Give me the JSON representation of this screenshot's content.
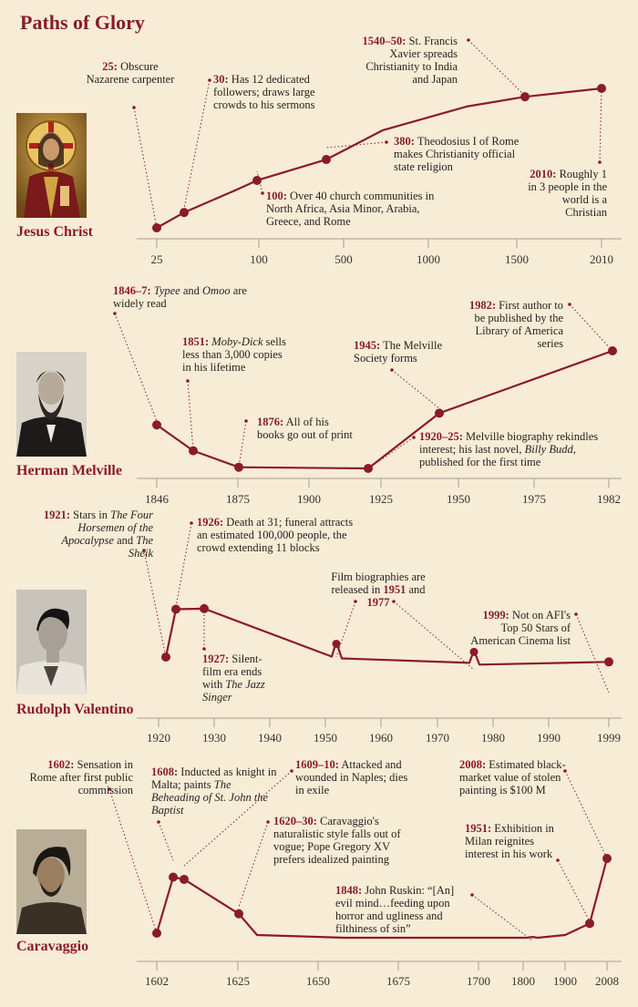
{
  "title": "Paths of Glory",
  "colors": {
    "accent": "#8b1a2b",
    "axis": "#a89d8e",
    "background": "#f7ecd6"
  },
  "chart_data": [
    {
      "type": "line",
      "name": "Jesus Christ",
      "x_ticks": [
        "25",
        "100",
        "500",
        "1000",
        "1500",
        "2010"
      ],
      "points": [
        {
          "x": "25",
          "level": 0.0
        },
        {
          "x": "30",
          "level": 0.11
        },
        {
          "x": "~60",
          "level": 0.28
        },
        {
          "x": "100",
          "level": 0.34
        },
        {
          "x": "380",
          "level": 0.49
        },
        {
          "x": "~750",
          "level": 0.7
        },
        {
          "x": "~1200",
          "level": 0.87
        },
        {
          "x": "1540–50",
          "level": 0.94
        },
        {
          "x": "2010",
          "level": 1.0
        }
      ],
      "annotations": [
        {
          "head": "25:",
          "text": "Obscure Nazarene carpenter"
        },
        {
          "head": "30:",
          "text": "Has 12 dedicated followers; draws large crowds to his sermons"
        },
        {
          "head": "100:",
          "text": "Over 40 church communities in North Africa, Asia Minor, Arabia, Greece, and Rome"
        },
        {
          "head": "380:",
          "text": "Theodosius I of Rome makes Christianity official state religion"
        },
        {
          "head": "1540–50:",
          "text": "St. Francis Xavier spreads Christianity to India and Japan"
        },
        {
          "head": "2010:",
          "text": "Roughly 1 in 3 people in the world is a Christian"
        }
      ]
    },
    {
      "type": "line",
      "name": "Herman Melville",
      "x_ticks": [
        "1846",
        "1875",
        "1900",
        "1925",
        "1950",
        "1975",
        "1982"
      ],
      "points": [
        {
          "x": "1846–7",
          "level": 0.37
        },
        {
          "x": "1851",
          "level": 0.15
        },
        {
          "x": "1876",
          "level": 0.01
        },
        {
          "x": "1920–25",
          "level": 0.0
        },
        {
          "x": "1945",
          "level": 0.47
        },
        {
          "x": "1982",
          "level": 1.0
        }
      ],
      "annotations": [
        {
          "head": "1846–7:",
          "text_parts": [
            "",
            "Typee",
            " and ",
            "Omoo",
            " are widely read"
          ]
        },
        {
          "head": "1851:",
          "text_parts": [
            "",
            "Moby-Dick",
            " sells less than 3,000 copies in his lifetime"
          ]
        },
        {
          "head": "1876:",
          "text": "All of his books go out of print"
        },
        {
          "head": "1945:",
          "text": "The Melville Society forms"
        },
        {
          "head": "1920–25:",
          "text_parts": [
            "Melville biography rekindles interest; his last novel, ",
            "Billy Budd",
            ", published for the first time"
          ]
        },
        {
          "head": "1982:",
          "text": "First author to be published by the Library of America series"
        }
      ]
    },
    {
      "type": "line",
      "name": "Rudolph Valentino",
      "x_ticks": [
        "1920",
        "1930",
        "1940",
        "1950",
        "1960",
        "1970",
        "1980",
        "1990",
        "1999"
      ],
      "points": [
        {
          "x": "1921",
          "level": 0.0
        },
        {
          "x": "1922",
          "level": 0.89
        },
        {
          "x": "1926",
          "level": 0.9
        },
        {
          "x": "1951",
          "level": 0.28
        },
        {
          "x": "1977",
          "level": 0.13
        },
        {
          "x": "1999",
          "level": -0.09
        }
      ],
      "annotations": [
        {
          "head": "1921:",
          "text_parts": [
            "Stars in ",
            "The Four Horsemen of the Apocalypse",
            " and ",
            "The Sheik",
            ""
          ]
        },
        {
          "head": "1926:",
          "text": "Death at 31; funeral attracts an estimated 100,000 people, the crowd extending 11 blocks"
        },
        {
          "head": "1927:",
          "text_parts": [
            "Silent-film era ends with ",
            "The Jazz Singer",
            ""
          ]
        },
        {
          "head": "",
          "text_parts": [
            "Film biographies are released in ",
            "1951",
            " and ",
            "1977",
            ""
          ]
        },
        {
          "head": "1999:",
          "text": "Not on AFI's Top 50 Stars of American Cinema list"
        }
      ]
    },
    {
      "type": "line",
      "name": "Caravaggio",
      "x_ticks": [
        "1602",
        "1625",
        "1650",
        "1675",
        "1700",
        "1800",
        "1900",
        "2008"
      ],
      "points": [
        {
          "x": "1602",
          "level": 0.0
        },
        {
          "x": "1608",
          "level": 0.75
        },
        {
          "x": "1609–10",
          "level": 0.72
        },
        {
          "x": "1625",
          "level": 0.26
        },
        {
          "x": "1848",
          "level": -0.05
        },
        {
          "x": "1951",
          "level": 0.13
        },
        {
          "x": "2008",
          "level": 1.0
        }
      ],
      "annotations": [
        {
          "head": "1602:",
          "text": "Sensation in Rome after first public commission"
        },
        {
          "head": "1608:",
          "text_parts": [
            "Inducted as knight in Malta; paints ",
            "The Beheading of St. John the Baptist",
            ""
          ]
        },
        {
          "head": "1609–10:",
          "text": "Attacked and wounded in Naples; dies in exile"
        },
        {
          "head": "1620–30:",
          "text": "Caravaggio's naturalistic style falls out of vogue; Pope Gregory XV prefers idealized painting"
        },
        {
          "head": "1848:",
          "text": "John Ruskin: “[An] evil mind…feeding upon horror and ugliness and filthiness of sin”"
        },
        {
          "head": "2008:",
          "text": "Estimated black-market value of stolen painting is $100 M"
        },
        {
          "head": "1951:",
          "text": "Exhibition in Milan reignites interest in his work"
        }
      ]
    }
  ]
}
